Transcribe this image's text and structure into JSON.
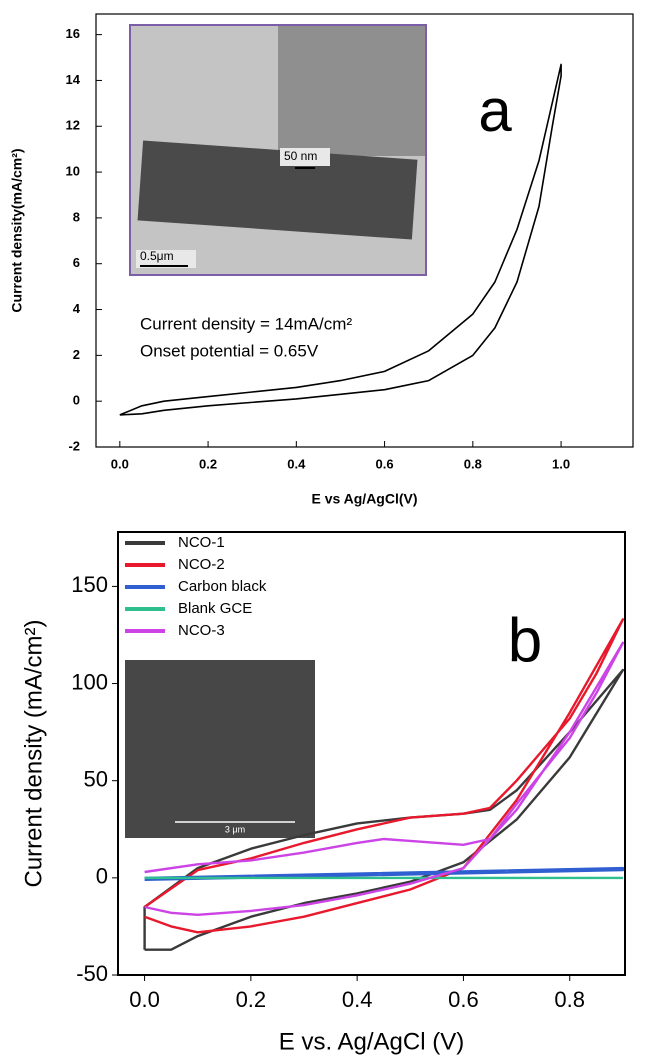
{
  "chart_data": [
    {
      "type": "line",
      "panel_label": "a",
      "xlabel": "E vs Ag/AgCl(V)",
      "ylabel": "Current density(mA/cm²)",
      "annotations": [
        "Current density = 14mA/cm²",
        "Onset potential = 0.65V"
      ],
      "inset_labels": [
        "50 nm",
        "0.5μm"
      ],
      "xlim": [
        -0.054,
        1.163
      ],
      "ylim": [
        -2,
        16.9
      ],
      "xticks": [
        {
          "value": 0,
          "label": "0.0"
        },
        0.2,
        0.4,
        0.6,
        0.8,
        {
          "value": 1,
          "label": "1.0"
        }
      ],
      "yticks": [
        -2,
        0,
        2,
        4,
        6,
        8,
        10,
        12,
        14,
        16
      ],
      "series": [
        {
          "color": "#000000",
          "x": [
            0,
            0.05,
            0.1,
            0.2,
            0.3,
            0.4,
            0.5,
            0.6,
            0.7,
            0.8,
            0.85,
            0.9,
            0.95,
            1.0,
            1.0,
            0.98,
            0.95,
            0.9,
            0.85,
            0.8,
            0.7,
            0.6,
            0.5,
            0.4,
            0.2,
            0.1,
            0.05,
            0
          ],
          "values": [
            -0.6,
            -0.2,
            0.0,
            0.2,
            0.4,
            0.6,
            0.9,
            1.3,
            2.2,
            3.8,
            5.2,
            7.5,
            10.5,
            14.7,
            14.2,
            12,
            8.5,
            5.2,
            3.2,
            2.0,
            0.9,
            0.5,
            0.3,
            0.1,
            -0.2,
            -0.4,
            -0.55,
            -0.6
          ]
        }
      ]
    },
    {
      "type": "line",
      "panel_label": "b",
      "xlabel": "E vs. Ag/AgCl  (V)",
      "ylabel": "Current density (mA/cm²)",
      "inset_labels": [
        "3 μm"
      ],
      "xlim": [
        -0.05,
        0.904
      ],
      "ylim": [
        -50,
        178
      ],
      "xticks": [
        {
          "value": 0,
          "label": "0.0"
        },
        0.2,
        0.4,
        0.6,
        0.8
      ],
      "yticks": [
        -50,
        0,
        50,
        100,
        150
      ],
      "series": [
        {
          "name": "NCO-1",
          "color": "#3a3a3a",
          "x": [
            0,
            0.05,
            0.1,
            0.2,
            0.3,
            0.4,
            0.5,
            0.6,
            0.7,
            0.8,
            0.9,
            0.8,
            0.7,
            0.65,
            0.6,
            0.5,
            0.4,
            0.3,
            0.2,
            0.1,
            0.05,
            0,
            0
          ],
          "values": [
            -37,
            -37,
            -30,
            -20,
            -13,
            -8,
            -2,
            8,
            30,
            62,
            107,
            75,
            45,
            35,
            33,
            31,
            28,
            22,
            15,
            5,
            -5,
            -15,
            -37
          ]
        },
        {
          "name": "NCO-2",
          "color": "#e8192c",
          "x": [
            0,
            0.05,
            0.1,
            0.2,
            0.3,
            0.4,
            0.5,
            0.6,
            0.7,
            0.8,
            0.9,
            0.85,
            0.8,
            0.7,
            0.65,
            0.6,
            0.5,
            0.4,
            0.3,
            0.2,
            0.1,
            0
          ],
          "values": [
            -20,
            -25,
            -28,
            -25,
            -20,
            -13,
            -6,
            5,
            40,
            85,
            133,
            105,
            82,
            50,
            36,
            33,
            31,
            25,
            18,
            10,
            4,
            -15
          ]
        },
        {
          "name": "Carbon black",
          "color": "#2f5fd0",
          "x": [
            0,
            0.9,
            0.9,
            0
          ],
          "values": [
            0,
            5,
            4,
            -1
          ]
        },
        {
          "name": "Blank GCE",
          "color": "#2fbf8f",
          "x": [
            0,
            0.9
          ],
          "values": [
            0,
            0
          ]
        },
        {
          "name": "NCO-3",
          "color": "#cc44e6",
          "x": [
            0,
            0.05,
            0.1,
            0.2,
            0.3,
            0.4,
            0.5,
            0.6,
            0.7,
            0.8,
            0.9,
            0.85,
            0.8,
            0.7,
            0.65,
            0.6,
            0.5,
            0.45,
            0.4,
            0.3,
            0.2,
            0.1,
            0
          ],
          "values": [
            -15,
            -18,
            -19,
            -17,
            -14,
            -9,
            -3,
            5,
            35,
            75,
            121,
            95,
            72,
            38,
            20,
            17,
            19,
            20,
            18,
            13,
            9,
            7,
            3
          ]
        }
      ]
    }
  ]
}
